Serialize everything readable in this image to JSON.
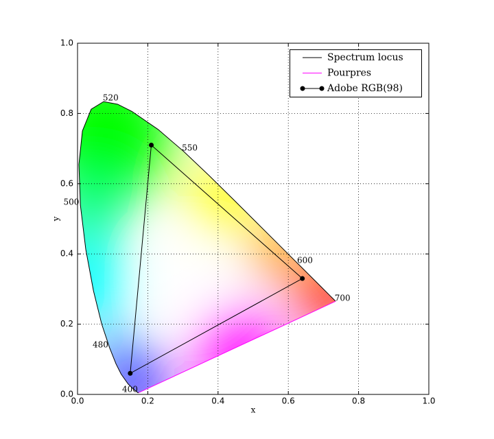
{
  "chart_data": {
    "type": "line",
    "xlabel": "x",
    "ylabel": "y",
    "xlim": [
      0,
      1
    ],
    "ylim": [
      0,
      1
    ],
    "xticks": [
      {
        "value": 0,
        "label": "0.0"
      },
      0.2,
      0.4,
      0.6,
      0.8,
      {
        "value": 1,
        "label": "1.0"
      }
    ],
    "yticks": [
      {
        "value": 0,
        "label": "0.0"
      },
      0.2,
      0.4,
      0.6,
      0.8,
      {
        "value": 1,
        "label": "1.0"
      }
    ],
    "grid": true,
    "legend": "upper right",
    "series": [
      {
        "name": "Spectrum locus",
        "color": "#000000",
        "x": [
          0.1741,
          0.1714,
          0.1644,
          0.1566,
          0.144,
          0.1241,
          0.1096,
          0.0913,
          0.0687,
          0.0454,
          0.0235,
          0.0082,
          0.0039,
          0.0139,
          0.0389,
          0.0743,
          0.1142,
          0.1547,
          0.2296,
          0.3016,
          0.3731,
          0.4441,
          0.5125,
          0.5752,
          0.627,
          0.6915,
          0.719,
          0.73,
          0.7347
        ],
        "values": [
          0.005,
          0.0051,
          0.0109,
          0.0177,
          0.0297,
          0.0578,
          0.0868,
          0.1327,
          0.2007,
          0.295,
          0.4127,
          0.5384,
          0.6548,
          0.7502,
          0.812,
          0.8338,
          0.8262,
          0.8059,
          0.7543,
          0.6923,
          0.6245,
          0.5547,
          0.4866,
          0.4242,
          0.3725,
          0.3083,
          0.2809,
          0.27,
          0.2653
        ]
      },
      {
        "name": "Pourpres",
        "color": "#ff00ff",
        "x": [
          0.1741,
          0.7347
        ],
        "values": [
          0.005,
          0.2653
        ]
      },
      {
        "name": "Adobe RGB(98)",
        "color": "#000000",
        "marker": true,
        "closed": true,
        "x": [
          0.64,
          0.21,
          0.15
        ],
        "values": [
          0.33,
          0.71,
          0.06
        ]
      }
    ],
    "annotations": [
      {
        "text": "520",
        "x": 0.072,
        "y": 0.844
      },
      {
        "text": "550",
        "x": 0.297,
        "y": 0.701
      },
      {
        "text": "500",
        "x": -0.04,
        "y": 0.547
      },
      {
        "text": "480",
        "x": 0.043,
        "y": 0.141
      },
      {
        "text": "400",
        "x": 0.127,
        "y": 0.014
      },
      {
        "text": "600",
        "x": 0.625,
        "y": 0.381
      },
      {
        "text": "700",
        "x": 0.732,
        "y": 0.273
      }
    ]
  }
}
